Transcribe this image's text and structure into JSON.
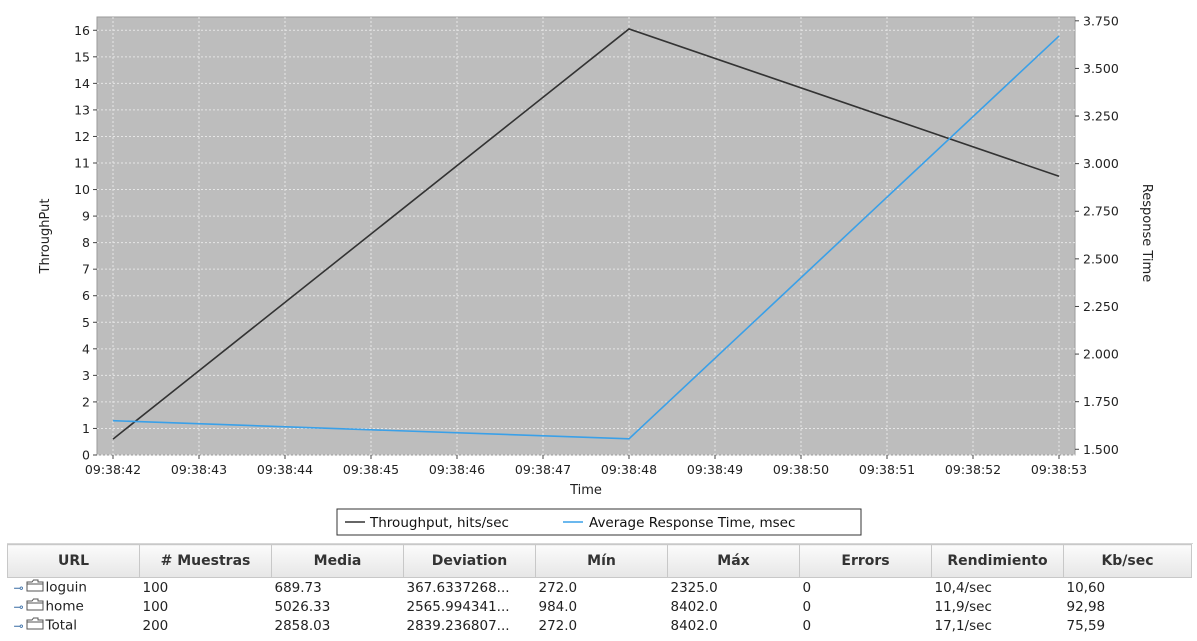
{
  "chart_data": {
    "type": "line",
    "x": [
      "09:38:42",
      "09:38:43",
      "09:38:44",
      "09:38:45",
      "09:38:46",
      "09:38:47",
      "09:38:48",
      "09:38:49",
      "09:38:50",
      "09:38:51",
      "09:38:52",
      "09:38:53"
    ],
    "xlabel": "Time",
    "ylabel_left": "ThroughPut",
    "ylabel_right": "Response Time",
    "yticks_left": [
      "0",
      "1",
      "2",
      "3",
      "4",
      "5",
      "6",
      "7",
      "8",
      "9",
      "10",
      "11",
      "12",
      "13",
      "14",
      "15",
      "16"
    ],
    "yticks_right": [
      "1.500",
      "1.750",
      "2.000",
      "2.250",
      "2.500",
      "2.750",
      "3.000",
      "3.250",
      "3.500",
      "3.750"
    ],
    "ylim_left": [
      0,
      16.5
    ],
    "ylim_right": [
      1470,
      3770
    ],
    "grid": true,
    "legend_position": "bottom",
    "series": [
      {
        "name": "Throughput, hits/sec",
        "axis": "left",
        "color": "#333333",
        "points": [
          [
            "09:38:42",
            0.6
          ],
          [
            "09:38:48",
            16.05
          ],
          [
            "09:38:53",
            10.5
          ]
        ]
      },
      {
        "name": "Average Response Time, msec",
        "axis": "right",
        "color": "#3aa0e8",
        "points": [
          [
            "09:38:42",
            1650
          ],
          [
            "09:38:48",
            1555
          ],
          [
            "09:38:53",
            3670
          ]
        ]
      }
    ]
  },
  "table": {
    "headers": [
      "URL",
      "# Muestras",
      "Media",
      "Deviation",
      "Mín",
      "Máx",
      "Errors",
      "Rendimiento",
      "Kb/sec"
    ],
    "rows": [
      [
        "loguin",
        "100",
        "689.73",
        "367.6337268...",
        "272.0",
        "2325.0",
        "0",
        "10,4/sec",
        "10,60"
      ],
      [
        "home",
        "100",
        "5026.33",
        "2565.994341...",
        "984.0",
        "8402.0",
        "0",
        "11,9/sec",
        "92,98"
      ],
      [
        "Total",
        "200",
        "2858.03",
        "2839.236807...",
        "272.0",
        "8402.0",
        "0",
        "17,1/sec",
        "75,59"
      ]
    ]
  },
  "colors": {
    "plot_background": "#bdbdbd",
    "throughput": "#333333",
    "response_time": "#3aa0e8"
  },
  "icons": {
    "row_key": "key-icon",
    "row_folder": "folder-icon"
  }
}
